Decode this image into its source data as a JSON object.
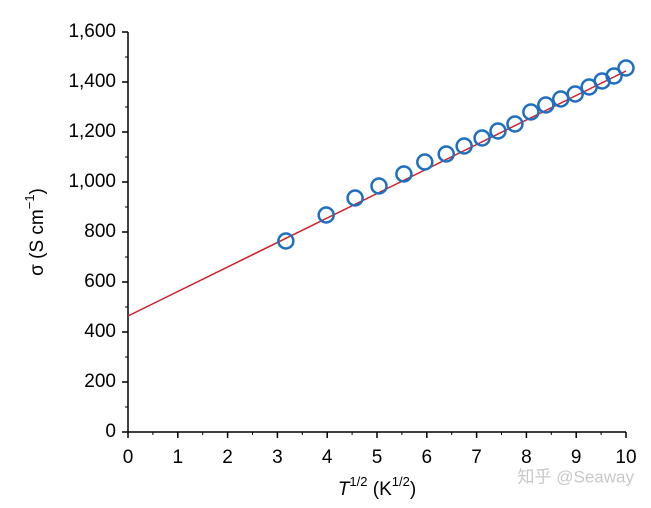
{
  "chart_data": {
    "type": "scatter",
    "xlabel": [
      "T",
      "1/2",
      " (K",
      "1/2",
      ")"
    ],
    "ylabel": [
      "σ (S cm",
      "−1",
      ")"
    ],
    "x": [
      3.17,
      3.98,
      4.56,
      5.04,
      5.54,
      5.96,
      6.39,
      6.75,
      7.11,
      7.43,
      7.77,
      8.09,
      8.39,
      8.69,
      8.98,
      9.26,
      9.52,
      9.76,
      10.0
    ],
    "series": [
      {
        "color": "#1f6fc0",
        "values": [
          764,
          868,
          936,
          984,
          1032,
          1080,
          1112,
          1144,
          1176,
          1204,
          1232,
          1280,
          1308,
          1332,
          1352,
          1380,
          1404,
          1424,
          1456
        ]
      }
    ],
    "fit": {
      "color": "#d0202a",
      "x": [
        0,
        10
      ],
      "values": [
        464,
        1444
      ]
    },
    "xlim": [
      0,
      10
    ],
    "xticks": [
      0,
      1,
      2,
      3,
      4,
      5,
      6,
      7,
      8,
      9,
      10
    ],
    "ylim": [
      0,
      1600
    ],
    "yticks": [
      0,
      200,
      400,
      600,
      800,
      {
        "value": 1000,
        "label": "1,000"
      },
      {
        "value": 1200,
        "label": "1,200"
      },
      {
        "value": 1400,
        "label": "1,400"
      },
      {
        "value": 1600,
        "label": "1,600"
      }
    ],
    "watermark": "知乎 @Seaway"
  }
}
